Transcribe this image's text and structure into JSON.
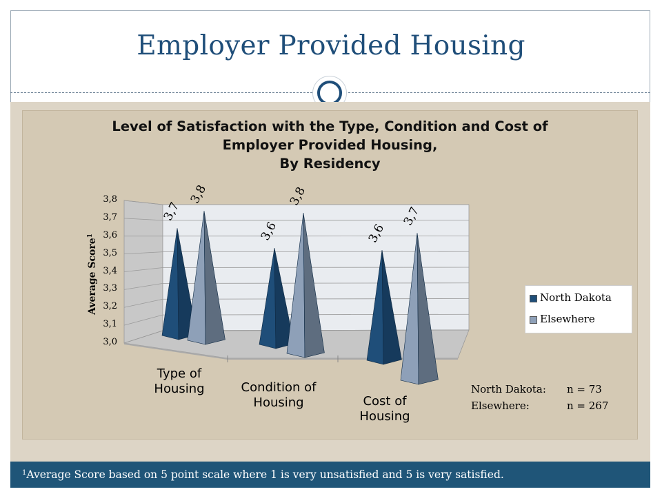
{
  "slide": {
    "title": "Employer Provided Housing",
    "footnote_marker": "1",
    "footnote": "Average Score based on 5 point scale where 1 is very unsatisfied and 5 is very satisfied."
  },
  "chart_data": {
    "type": "bar",
    "shape": "3d-pyramid",
    "title_lines": [
      "Level of Satisfaction with the Type, Condition and Cost of",
      "Employer Provided Housing,",
      "By Residency"
    ],
    "ylabel": "Average Score",
    "ylabel_marker": "1",
    "ylim": [
      3.0,
      3.8
    ],
    "yticks": [
      "3,0",
      "3,1",
      "3,2",
      "3,3",
      "3,4",
      "3,5",
      "3,6",
      "3,7",
      "3,8"
    ],
    "categories": [
      "Type of\nHousing",
      "Condition of\nHousing",
      "Cost of\nHousing"
    ],
    "series": [
      {
        "name": "North Dakota",
        "color": "#1f4e79",
        "values": [
          3.7,
          3.6,
          3.6
        ],
        "labels": [
          "3,7",
          "3,6",
          "3,6"
        ]
      },
      {
        "name": "Elsewhere",
        "color": "#8ea0b8",
        "values": [
          3.8,
          3.8,
          3.7
        ],
        "labels": [
          "3,8",
          "3,8",
          "3,7"
        ]
      }
    ],
    "legend_position": "right",
    "grid": true
  },
  "sample_notes": [
    {
      "group": "North Dakota:",
      "n": "n = 73"
    },
    {
      "group": "Elsewhere:",
      "n": "n = 267"
    }
  ]
}
